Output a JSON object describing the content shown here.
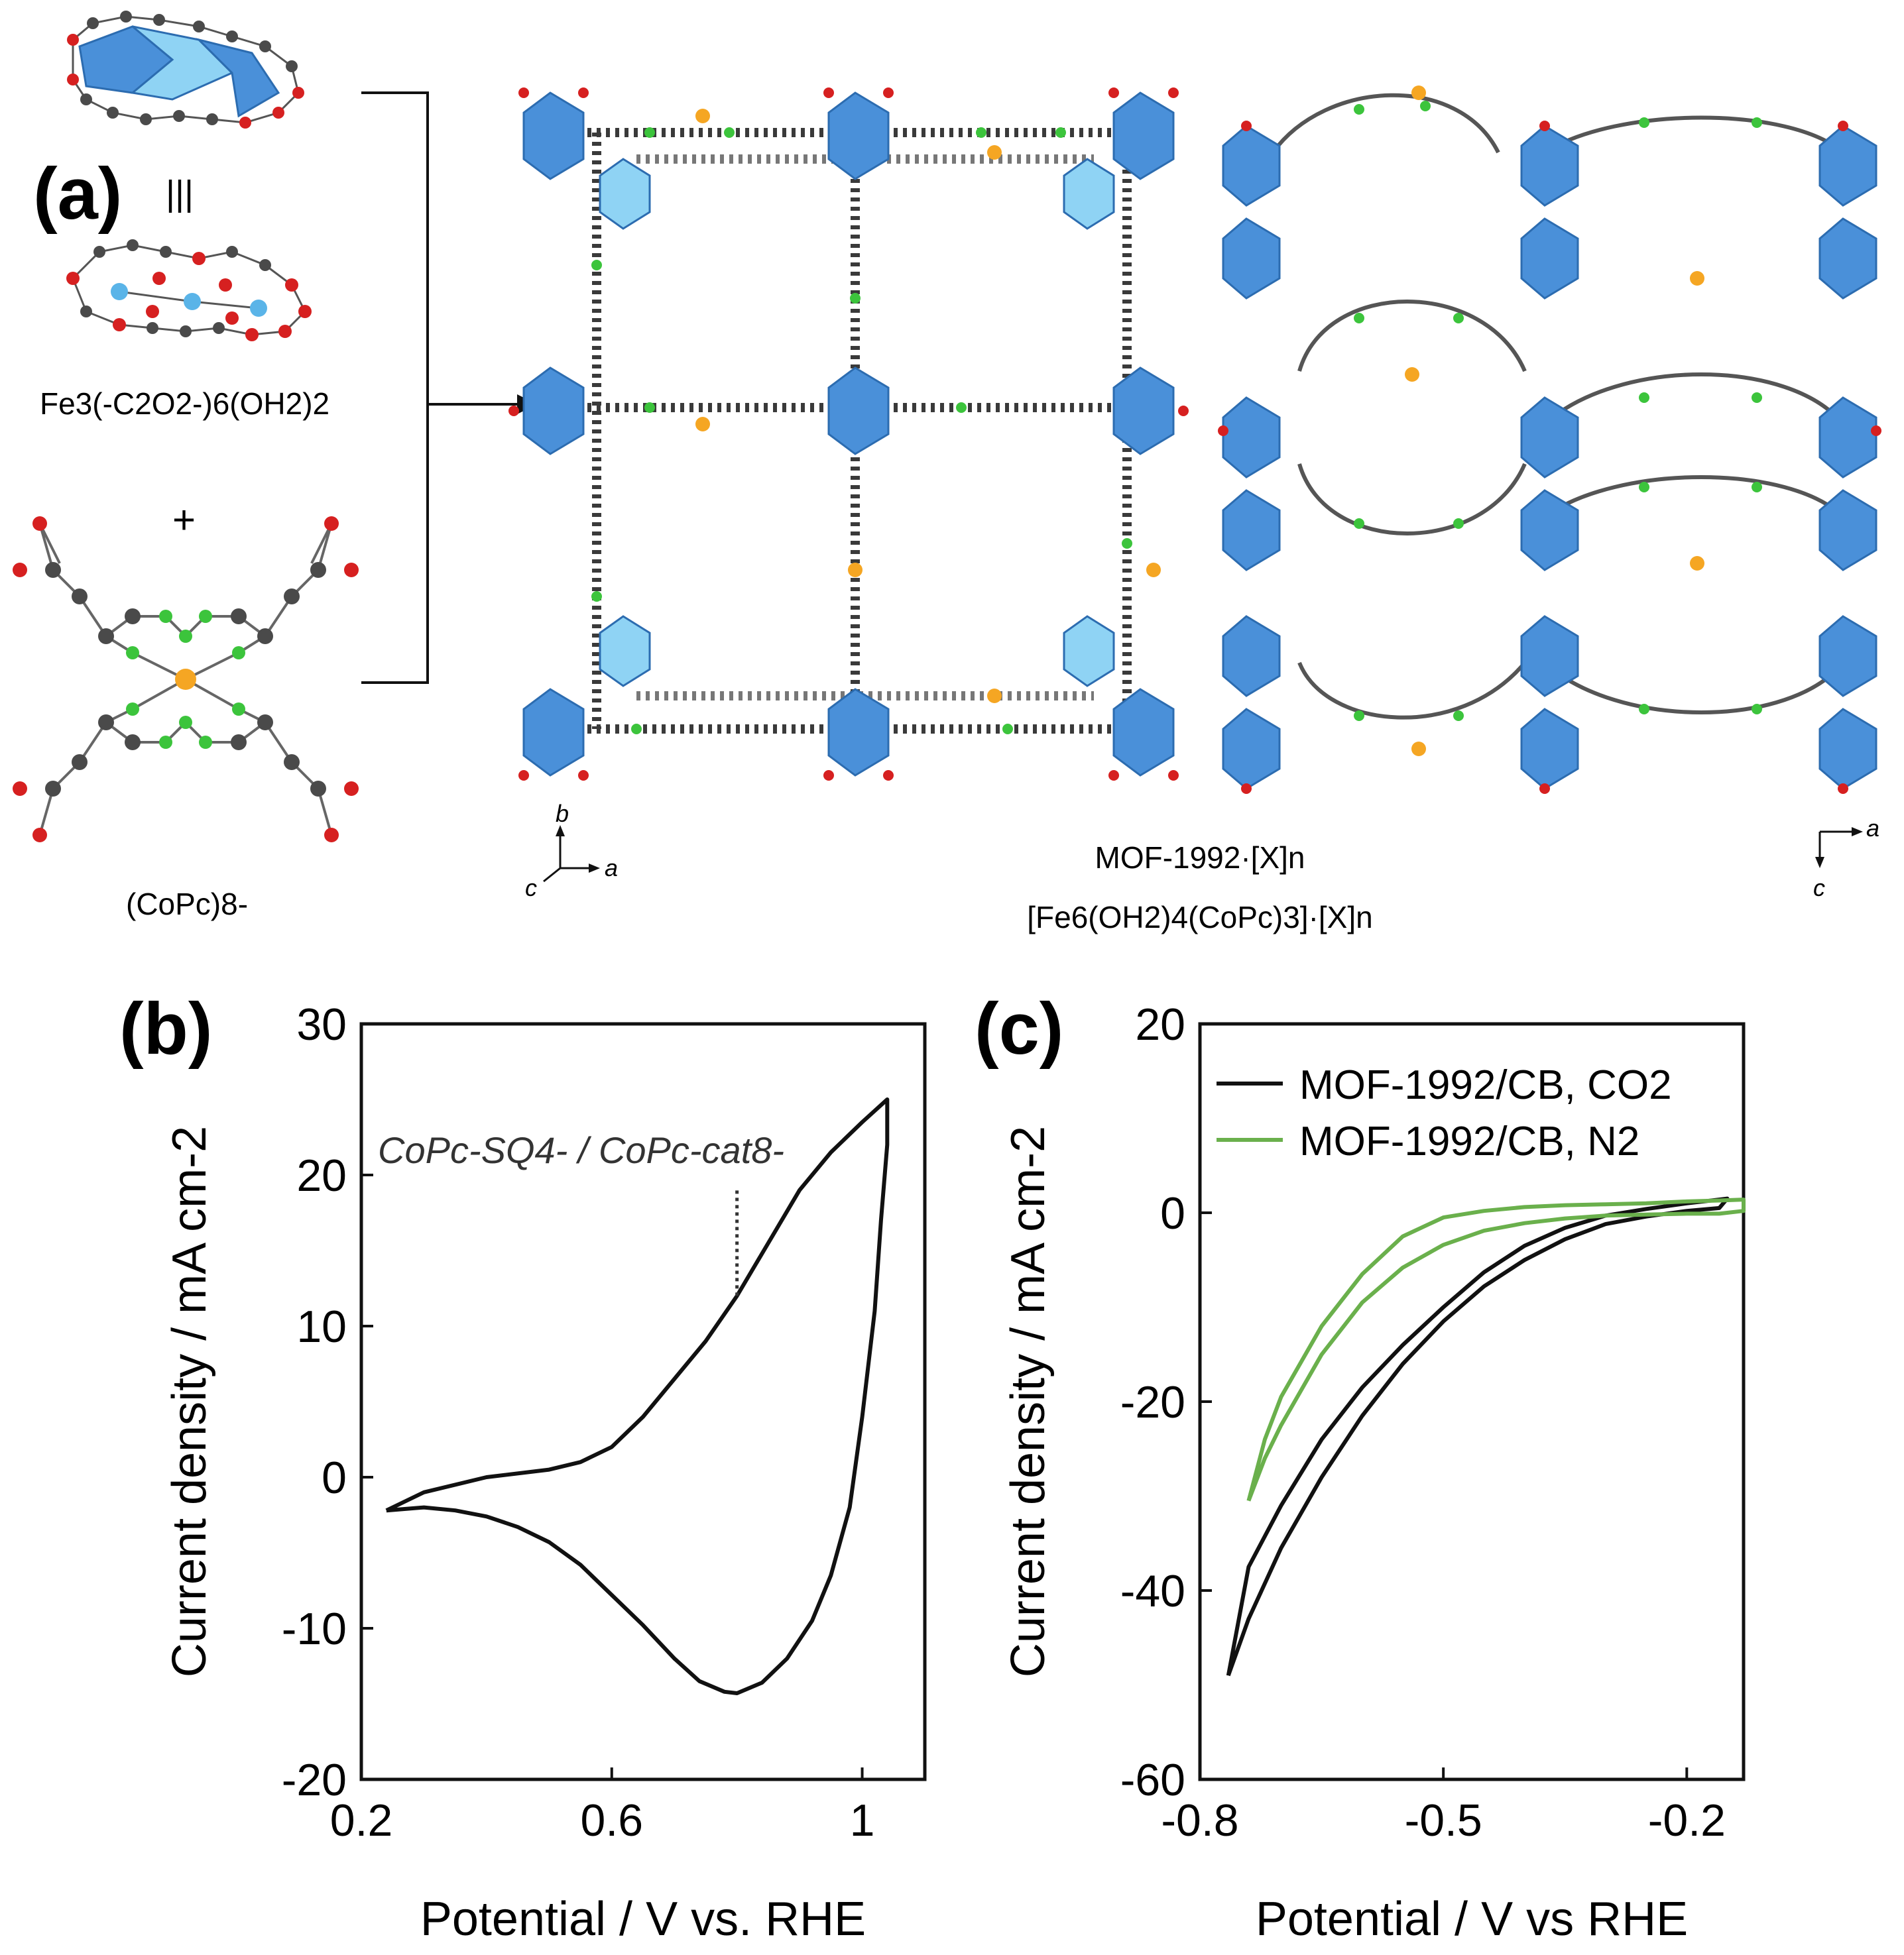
{
  "panel_a": {
    "label": "(a)",
    "equiv_symbol": "|||",
    "plus_symbol": "+",
    "fe_unit": "Fe3(-C2O2-)6(OH2)2",
    "copc_unit": "(CoPc)8-",
    "mof_name": "MOF-1992·[X]n",
    "mof_formula": "[Fe6(OH2)4(CoPc)3]·[X]n",
    "axes_left": {
      "b": "b",
      "a": "a",
      "c": "c"
    },
    "axes_right": {
      "a": "a",
      "c": "c"
    },
    "colors": {
      "octahedron": "#4a90d9",
      "octahedron_light": "#8fd3f4",
      "oxygen": "#d62020",
      "carbon": "#4a4a4a",
      "nitrogen": "#3cc43c",
      "cobalt": "#f5a623",
      "iron": "#5ab4e8"
    }
  },
  "chart_data": [
    {
      "panel": "(b)",
      "type": "line",
      "xlabel": "Potential / V vs. RHE",
      "ylabel": "Current density / mA cm-2",
      "xlim": [
        0.2,
        1.1
      ],
      "ylim": [
        -20,
        30
      ],
      "xticks": [
        "0.2",
        "0.6",
        "1"
      ],
      "yticks": [
        "-20",
        "-10",
        "0",
        "10",
        "20",
        "30"
      ],
      "annotation": "CoPc-SQ4- / CoPc-cat8-",
      "annotation_marker_x": 0.8,
      "annotation_marker_y": [
        12,
        19
      ],
      "series": [
        {
          "color": "#111111",
          "x": [
            0.24,
            0.3,
            0.4,
            0.5,
            0.55,
            0.6,
            0.65,
            0.7,
            0.75,
            0.8,
            0.85,
            0.9,
            0.95,
            1.0,
            1.04,
            1.04,
            1.03,
            1.02,
            1.0,
            0.98,
            0.95,
            0.92,
            0.88,
            0.84,
            0.8,
            0.78,
            0.74,
            0.7,
            0.65,
            0.6,
            0.55,
            0.5,
            0.45,
            0.4,
            0.35,
            0.3,
            0.24
          ],
          "y": [
            -2.2,
            -1.0,
            0.0,
            0.5,
            1.0,
            2.0,
            4.0,
            6.5,
            9.0,
            12.0,
            15.5,
            19.0,
            21.5,
            23.5,
            25.0,
            22.0,
            17.0,
            11.0,
            4.0,
            -2.0,
            -6.5,
            -9.5,
            -12.0,
            -13.6,
            -14.3,
            -14.2,
            -13.5,
            -12.0,
            -9.8,
            -7.8,
            -5.8,
            -4.3,
            -3.3,
            -2.6,
            -2.2,
            -2.0,
            -2.2
          ]
        }
      ]
    },
    {
      "panel": "(c)",
      "type": "line",
      "xlabel": "Potential / V vs RHE",
      "ylabel": "Current density / mA cm-2",
      "xlim": [
        -0.8,
        -0.13
      ],
      "ylim": [
        -60,
        20
      ],
      "xticks": [
        "-0.8",
        "-0.5",
        "-0.2"
      ],
      "yticks": [
        "-60",
        "-40",
        "-20",
        "0",
        "20"
      ],
      "legend_position": "top-left",
      "series": [
        {
          "name": "MOF-1992/CB, CO2",
          "color": "#111111",
          "x": [
            -0.765,
            -0.74,
            -0.7,
            -0.65,
            -0.6,
            -0.55,
            -0.5,
            -0.45,
            -0.4,
            -0.35,
            -0.3,
            -0.25,
            -0.2,
            -0.16,
            -0.15,
            -0.16,
            -0.2,
            -0.25,
            -0.3,
            -0.35,
            -0.4,
            -0.45,
            -0.5,
            -0.55,
            -0.6,
            -0.65,
            -0.7,
            -0.74,
            -0.765
          ],
          "y": [
            -49.0,
            -43.0,
            -35.5,
            -28.0,
            -21.5,
            -16.0,
            -11.5,
            -7.8,
            -5.0,
            -2.8,
            -1.2,
            -0.4,
            0.2,
            0.5,
            1.5,
            1.4,
            1.0,
            0.4,
            -0.3,
            -1.6,
            -3.5,
            -6.3,
            -10.0,
            -14.0,
            -18.5,
            -24.0,
            -31.0,
            -37.5,
            -49.0
          ]
        },
        {
          "name": "MOF-1992/CB, N2",
          "color": "#6ab04c",
          "x": [
            -0.74,
            -0.72,
            -0.7,
            -0.65,
            -0.6,
            -0.55,
            -0.5,
            -0.45,
            -0.4,
            -0.35,
            -0.3,
            -0.25,
            -0.2,
            -0.16,
            -0.13,
            -0.13,
            -0.16,
            -0.2,
            -0.25,
            -0.3,
            -0.35,
            -0.4,
            -0.45,
            -0.5,
            -0.55,
            -0.6,
            -0.65,
            -0.7,
            -0.72,
            -0.74
          ],
          "y": [
            -30.5,
            -26.0,
            -22.5,
            -15.0,
            -9.5,
            -5.8,
            -3.4,
            -1.9,
            -1.1,
            -0.6,
            -0.3,
            -0.2,
            -0.1,
            -0.1,
            0.2,
            1.4,
            1.3,
            1.2,
            1.0,
            0.9,
            0.8,
            0.6,
            0.2,
            -0.5,
            -2.5,
            -6.5,
            -12.0,
            -19.5,
            -24.0,
            -30.5
          ]
        }
      ]
    }
  ]
}
